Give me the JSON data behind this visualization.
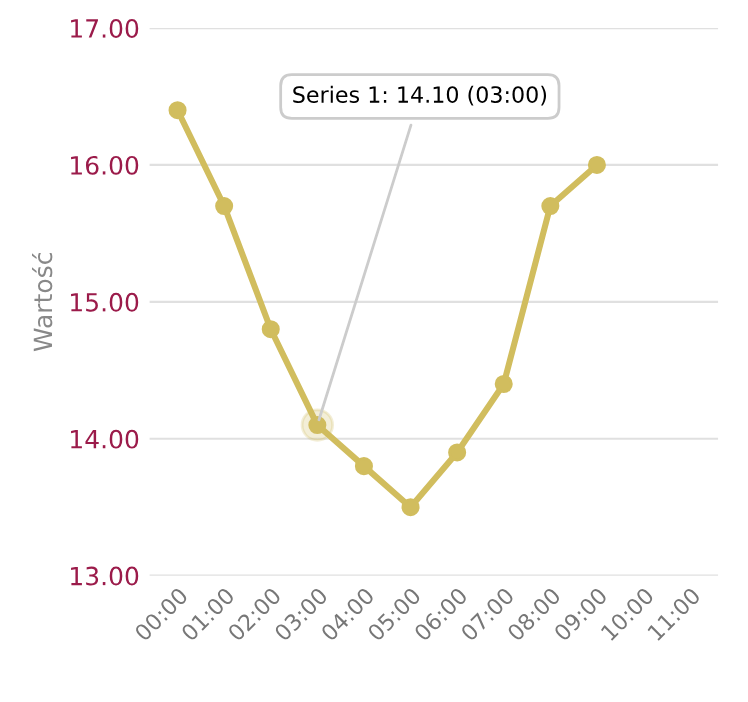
{
  "chart_data": {
    "type": "line",
    "ylabel": "Wartość",
    "categories": [
      "00:00",
      "01:00",
      "02:00",
      "03:00",
      "04:00",
      "05:00",
      "06:00",
      "07:00",
      "08:00",
      "09:00",
      "10:00",
      "11:00"
    ],
    "series": [
      {
        "color": "#d1bd5e",
        "values": [
          16.4,
          15.7,
          14.8,
          14.1,
          13.8,
          13.5,
          13.9,
          14.4,
          15.7,
          16.0,
          null,
          null
        ]
      }
    ],
    "ylim": [
      13,
      17
    ],
    "yticks": [
      {
        "value": 13,
        "label": "13.00"
      },
      {
        "value": 14,
        "label": "14.00"
      },
      {
        "value": 15,
        "label": "15.00"
      },
      {
        "value": 16,
        "label": "16.00"
      },
      {
        "value": 17,
        "label": "17.00"
      }
    ],
    "grid": "y",
    "marker": "circle",
    "line_style": "solid",
    "legend": false,
    "annotations": [
      {
        "text": "Series 1: 14.10 (03:00)",
        "x": "03:00",
        "y": 14.1
      }
    ]
  }
}
